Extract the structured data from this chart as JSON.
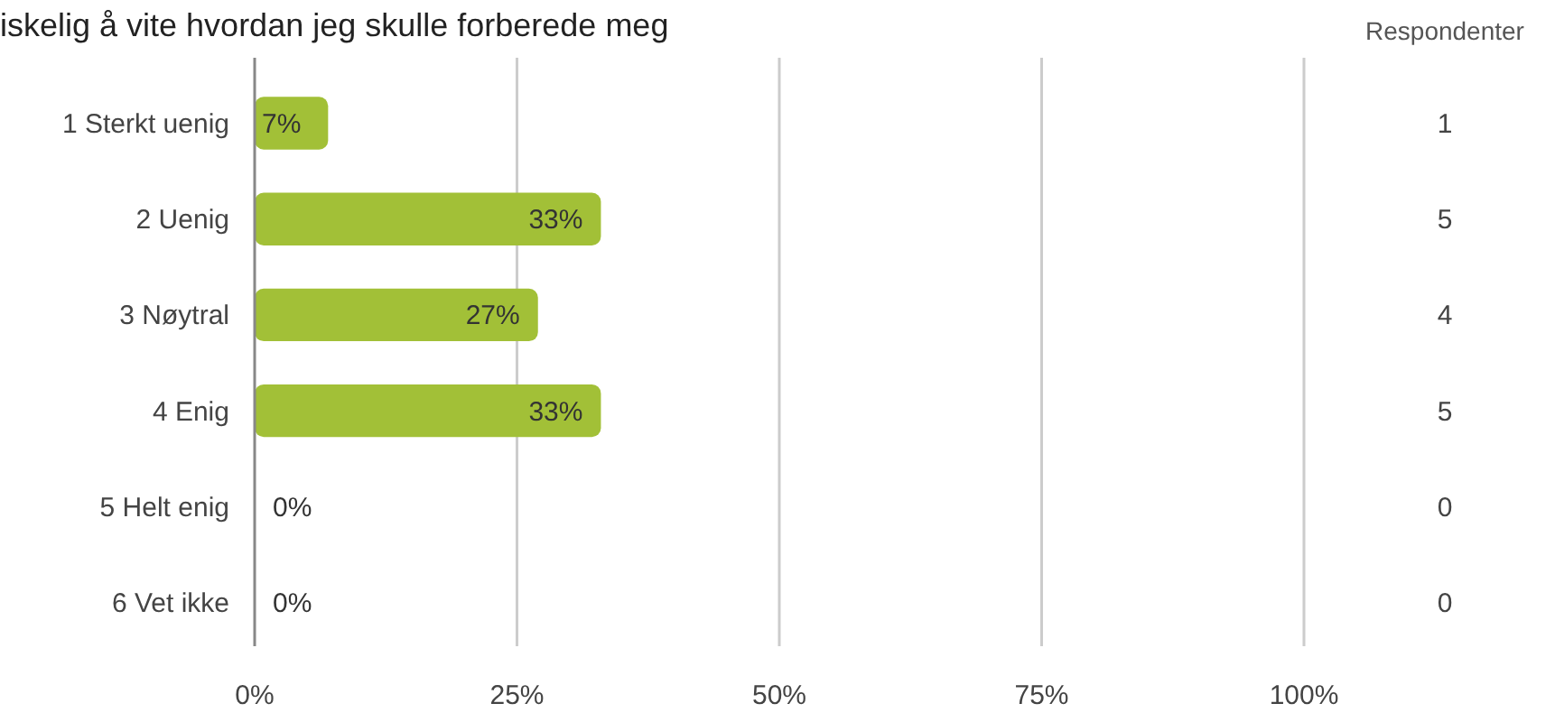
{
  "chart_data": {
    "type": "bar",
    "orientation": "horizontal",
    "title": "iskelig å vite hvordan jeg skulle forberede meg",
    "categories": [
      "1 Sterkt uenig",
      "2 Uenig",
      "3 Nøytral",
      "4 Enig",
      "5 Helt enig",
      "6 Vet ikke"
    ],
    "values": [
      7,
      33,
      27,
      33,
      0,
      0
    ],
    "value_labels": [
      "7%",
      "33%",
      "27%",
      "33%",
      "0%",
      "0%"
    ],
    "color": "#a2c037",
    "xlim": [
      0,
      100
    ],
    "xticks": [
      {
        "value": 0,
        "label": "0%"
      },
      {
        "value": 25,
        "label": "25%"
      },
      {
        "value": 50,
        "label": "50%"
      },
      {
        "value": 75,
        "label": "75%"
      },
      {
        "value": 100,
        "label": "100%"
      }
    ],
    "grid": "x",
    "annotations": [
      "Respondenter",
      "1",
      "5",
      "4",
      "5",
      "0",
      "0"
    ]
  }
}
